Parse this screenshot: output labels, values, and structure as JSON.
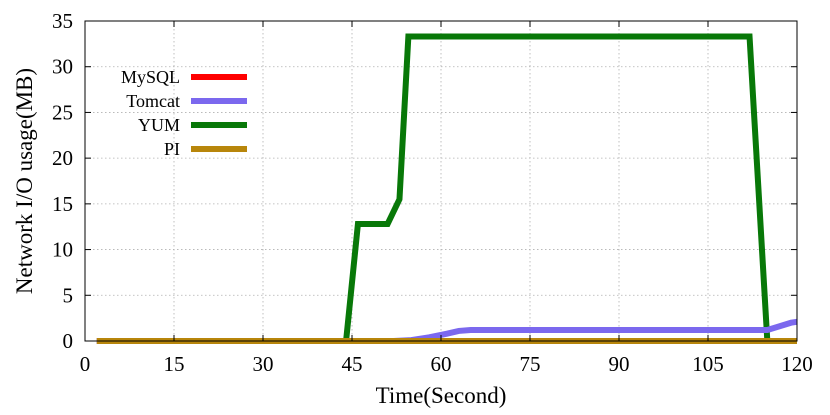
{
  "chart_data": {
    "type": "line",
    "xlabel": "Time(Second)",
    "ylabel": "Network I/O usage(MB)",
    "xlim": [
      0,
      120
    ],
    "ylim": [
      0,
      35
    ],
    "xticks": [
      0,
      15,
      30,
      45,
      60,
      75,
      90,
      105,
      120
    ],
    "yticks": [
      0,
      5,
      10,
      15,
      20,
      25,
      30,
      35
    ],
    "grid": true,
    "legend_position": "top-left",
    "series": [
      {
        "name": "MySQL",
        "color": "#ff0000",
        "x": [
          2,
          120
        ],
        "y": [
          0,
          0
        ]
      },
      {
        "name": "Tomcat",
        "color": "#7b68ee",
        "x": [
          2,
          52,
          55,
          58,
          61,
          63,
          65,
          70,
          80,
          100,
          115,
          117,
          119,
          120
        ],
        "y": [
          0,
          0,
          0.1,
          0.4,
          0.8,
          1.1,
          1.2,
          1.2,
          1.2,
          1.2,
          1.2,
          1.6,
          2.0,
          2.1
        ]
      },
      {
        "name": "YUM",
        "color": "#087808",
        "x": [
          2,
          44,
          46,
          48,
          51,
          53,
          54.5,
          55,
          112,
          115,
          120
        ],
        "y": [
          0,
          0,
          12.8,
          12.8,
          12.8,
          15.5,
          33.3,
          33.3,
          33.3,
          0,
          0
        ]
      },
      {
        "name": "PI",
        "color": "#b8860b",
        "x": [
          2,
          120
        ],
        "y": [
          0,
          0
        ]
      }
    ]
  }
}
